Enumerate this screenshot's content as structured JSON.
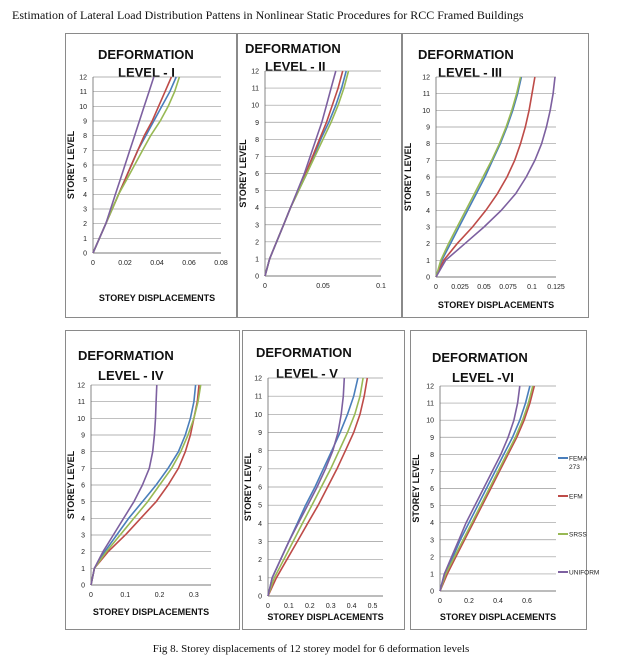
{
  "header": "Estimation of Lateral Load Distribution Pattens in Nonlinear Static Procedures for RCC Framed Buildings",
  "caption": "Fig 8. Storey displacements of 12 storey model for 6 deformation levels",
  "colors": {
    "FEMA 273": "#4a7ebb",
    "EFM": "#be4b48",
    "SRSS": "#98b954",
    "UNIFORM": "#7d60a0"
  },
  "chart_data": [
    {
      "type": "line",
      "title_line1": "DEFORMATION",
      "title_line2": "LEVEL - I",
      "xlabel": "STOREY DISPLACEMENTS",
      "ylabel": "STOREY LEVEL",
      "xlim": [
        0,
        0.08
      ],
      "xticks": [
        "0",
        "0.02",
        "0.04",
        "0.06",
        "0.08"
      ],
      "ylim": [
        0,
        12
      ],
      "yticks": [
        "0",
        "1",
        "2",
        "3",
        "4",
        "5",
        "6",
        "7",
        "8",
        "9",
        "10",
        "11",
        "12"
      ],
      "legend": null,
      "series": [
        {
          "name": "FEMA 273",
          "x": [
            0.004,
            0.008,
            0.012,
            0.016,
            0.02,
            0.024,
            0.028,
            0.033,
            0.038,
            0.043,
            0.048,
            0.052
          ],
          "y": [
            1,
            2,
            3,
            4,
            5,
            6,
            7,
            8,
            9,
            10,
            11,
            12
          ]
        },
        {
          "name": "EFM",
          "x": [
            0.004,
            0.008,
            0.012,
            0.016,
            0.02,
            0.024,
            0.028,
            0.032,
            0.037,
            0.041,
            0.045,
            0.049
          ],
          "y": [
            1,
            2,
            3,
            4,
            5,
            6,
            7,
            8,
            9,
            10,
            11,
            12
          ]
        },
        {
          "name": "SRSS",
          "x": [
            0.004,
            0.008,
            0.012,
            0.016,
            0.021,
            0.026,
            0.031,
            0.036,
            0.042,
            0.047,
            0.051,
            0.054
          ],
          "y": [
            1,
            2,
            3,
            4,
            5,
            6,
            7,
            8,
            9,
            10,
            11,
            12
          ]
        },
        {
          "name": "UNIFORM",
          "x": [
            0.004,
            0.008,
            0.011,
            0.014,
            0.017,
            0.02,
            0.023,
            0.026,
            0.029,
            0.032,
            0.035,
            0.038
          ],
          "y": [
            1,
            2,
            3,
            4,
            5,
            6,
            7,
            8,
            9,
            10,
            11,
            12
          ]
        }
      ]
    },
    {
      "type": "line",
      "title_line1": "DEFORMATION",
      "title_line2": "LEVEL - II",
      "xlabel": "",
      "ylabel": "STOREY LEVEL",
      "xlim": [
        0,
        0.1
      ],
      "xticks": [
        "0",
        "0.05",
        "0.1"
      ],
      "ylim": [
        0,
        12
      ],
      "yticks": [
        "0",
        "1",
        "2",
        "3",
        "4",
        "5",
        "6",
        "7",
        "8",
        "9",
        "10",
        "11",
        "12"
      ],
      "legend": null,
      "series": [
        {
          "name": "FEMA 273",
          "x": [
            0.004,
            0.01,
            0.016,
            0.022,
            0.029,
            0.036,
            0.042,
            0.048,
            0.055,
            0.061,
            0.066,
            0.07
          ],
          "y": [
            1,
            2,
            3,
            4,
            5,
            6,
            7,
            8,
            9,
            10,
            11,
            12
          ]
        },
        {
          "name": "EFM",
          "x": [
            0.004,
            0.01,
            0.016,
            0.022,
            0.029,
            0.035,
            0.041,
            0.047,
            0.053,
            0.058,
            0.063,
            0.067
          ],
          "y": [
            1,
            2,
            3,
            4,
            5,
            6,
            7,
            8,
            9,
            10,
            11,
            12
          ]
        },
        {
          "name": "SRSS",
          "x": [
            0.004,
            0.01,
            0.016,
            0.022,
            0.029,
            0.036,
            0.043,
            0.05,
            0.057,
            0.063,
            0.068,
            0.072
          ],
          "y": [
            1,
            2,
            3,
            4,
            5,
            6,
            7,
            8,
            9,
            10,
            11,
            12
          ]
        },
        {
          "name": "UNIFORM",
          "x": [
            0.004,
            0.01,
            0.016,
            0.022,
            0.028,
            0.034,
            0.039,
            0.044,
            0.049,
            0.053,
            0.057,
            0.061
          ],
          "y": [
            1,
            2,
            3,
            4,
            5,
            6,
            7,
            8,
            9,
            10,
            11,
            12
          ]
        }
      ]
    },
    {
      "type": "line",
      "title_line1": "DEFORMATION",
      "title_line2": "LEVEL - III",
      "xlabel": "STOREY DISPLACEMENTS",
      "ylabel": "STOREY LEVEL",
      "xlim": [
        0,
        0.125
      ],
      "xticks": [
        "0",
        "0.025",
        "0.05",
        "0.075",
        "0.1",
        "0.125"
      ],
      "ylim": [
        0,
        12
      ],
      "yticks": [
        "0",
        "1",
        "2",
        "3",
        "4",
        "5",
        "6",
        "7",
        "8",
        "9",
        "10",
        "11",
        "12"
      ],
      "legend": null,
      "series": [
        {
          "name": "FEMA 273",
          "x": [
            0.006,
            0.015,
            0.024,
            0.033,
            0.042,
            0.051,
            0.059,
            0.067,
            0.074,
            0.08,
            0.085,
            0.089
          ],
          "y": [
            1,
            2,
            3,
            4,
            5,
            6,
            7,
            8,
            9,
            10,
            11,
            12
          ]
        },
        {
          "name": "EFM",
          "x": [
            0.008,
            0.022,
            0.038,
            0.052,
            0.064,
            0.074,
            0.082,
            0.088,
            0.093,
            0.097,
            0.1,
            0.103
          ],
          "y": [
            1,
            2,
            3,
            4,
            5,
            6,
            7,
            8,
            9,
            10,
            11,
            12
          ]
        },
        {
          "name": "SRSS",
          "x": [
            0.005,
            0.013,
            0.022,
            0.031,
            0.04,
            0.049,
            0.058,
            0.066,
            0.073,
            0.079,
            0.084,
            0.088
          ],
          "y": [
            1,
            2,
            3,
            4,
            5,
            6,
            7,
            8,
            9,
            10,
            11,
            12
          ]
        },
        {
          "name": "UNIFORM",
          "x": [
            0.01,
            0.03,
            0.05,
            0.068,
            0.083,
            0.094,
            0.103,
            0.11,
            0.115,
            0.119,
            0.122,
            0.124
          ],
          "y": [
            1,
            2,
            3,
            4,
            5,
            6,
            7,
            8,
            9,
            10,
            11,
            12
          ]
        }
      ]
    },
    {
      "type": "line",
      "title_line1": "DEFORMATION",
      "title_line2": "LEVEL - IV",
      "xlabel": "STOREY DISPLACEMENTS",
      "ylabel": "STOREY LEVEL",
      "xlim": [
        0,
        0.35
      ],
      "xticks": [
        "0",
        "0.1",
        "0.2",
        "0.3"
      ],
      "ylim": [
        0,
        12
      ],
      "yticks": [
        "0",
        "1",
        "2",
        "3",
        "4",
        "5",
        "6",
        "7",
        "8",
        "9",
        "10",
        "11",
        "12"
      ],
      "legend": null,
      "series": [
        {
          "name": "FEMA 273",
          "x": [
            0.01,
            0.04,
            0.075,
            0.11,
            0.15,
            0.19,
            0.225,
            0.255,
            0.275,
            0.29,
            0.3,
            0.305
          ],
          "y": [
            1,
            2,
            3,
            4,
            5,
            6,
            7,
            8,
            9,
            10,
            11,
            12
          ]
        },
        {
          "name": "EFM",
          "x": [
            0.01,
            0.05,
            0.1,
            0.145,
            0.19,
            0.225,
            0.255,
            0.275,
            0.29,
            0.3,
            0.31,
            0.315
          ],
          "y": [
            1,
            2,
            3,
            4,
            5,
            6,
            7,
            8,
            9,
            10,
            11,
            12
          ]
        },
        {
          "name": "SRSS",
          "x": [
            0.01,
            0.045,
            0.085,
            0.125,
            0.165,
            0.2,
            0.235,
            0.262,
            0.283,
            0.3,
            0.312,
            0.32
          ],
          "y": [
            1,
            2,
            3,
            4,
            5,
            6,
            7,
            8,
            9,
            10,
            11,
            12
          ]
        },
        {
          "name": "UNIFORM",
          "x": [
            0.01,
            0.035,
            0.065,
            0.095,
            0.125,
            0.15,
            0.17,
            0.18,
            0.185,
            0.188,
            0.19,
            0.192
          ],
          "y": [
            1,
            2,
            3,
            4,
            5,
            6,
            7,
            8,
            9,
            10,
            11,
            12
          ]
        }
      ]
    },
    {
      "type": "line",
      "title_line1": "DEFORMATION",
      "title_line2": "LEVEL - V",
      "xlabel": "STOREY DISPLACEMENTS",
      "ylabel": "STOREY LEVEL",
      "xlim": [
        0,
        0.55
      ],
      "xticks": [
        "0",
        "0.1",
        "0.2",
        "0.3",
        "0.4",
        "0.5"
      ],
      "ylim": [
        0,
        12
      ],
      "yticks": [
        "0",
        "1",
        "2",
        "3",
        "4",
        "5",
        "6",
        "7",
        "8",
        "9",
        "10",
        "11",
        "12"
      ],
      "legend": null,
      "series": [
        {
          "name": "FEMA 273",
          "x": [
            0.02,
            0.06,
            0.1,
            0.14,
            0.18,
            0.225,
            0.265,
            0.305,
            0.345,
            0.38,
            0.41,
            0.43
          ],
          "y": [
            1,
            2,
            3,
            4,
            5,
            6,
            7,
            8,
            9,
            10,
            11,
            12
          ]
        },
        {
          "name": "EFM",
          "x": [
            0.04,
            0.09,
            0.14,
            0.19,
            0.24,
            0.285,
            0.33,
            0.37,
            0.41,
            0.44,
            0.46,
            0.475
          ],
          "y": [
            1,
            2,
            3,
            4,
            5,
            6,
            7,
            8,
            9,
            10,
            11,
            12
          ]
        },
        {
          "name": "SRSS",
          "x": [
            0.03,
            0.075,
            0.12,
            0.165,
            0.21,
            0.255,
            0.3,
            0.34,
            0.38,
            0.415,
            0.44,
            0.455
          ],
          "y": [
            1,
            2,
            3,
            4,
            5,
            6,
            7,
            8,
            9,
            10,
            11,
            12
          ]
        },
        {
          "name": "UNIFORM",
          "x": [
            0.02,
            0.06,
            0.1,
            0.145,
            0.19,
            0.235,
            0.275,
            0.31,
            0.335,
            0.35,
            0.36,
            0.365
          ],
          "y": [
            1,
            2,
            3,
            4,
            5,
            6,
            7,
            8,
            9,
            10,
            11,
            12
          ]
        }
      ]
    },
    {
      "type": "line",
      "title_line1": "DEFORMATION",
      "title_line2": "LEVEL -VI",
      "xlabel": "STOREY DISPLACEMENTS",
      "ylabel": "STOREY LEVEL",
      "xlim": [
        0,
        0.8
      ],
      "xticks": [
        "0",
        "0.2",
        "0.4",
        "0.6"
      ],
      "ylim": [
        0,
        12
      ],
      "yticks": [
        "0",
        "1",
        "2",
        "3",
        "4",
        "5",
        "6",
        "7",
        "8",
        "9",
        "10",
        "11",
        "12"
      ],
      "legend": "right",
      "series": [
        {
          "name": "FEMA 273",
          "x": [
            0.03,
            0.09,
            0.14,
            0.2,
            0.26,
            0.32,
            0.38,
            0.44,
            0.5,
            0.55,
            0.59,
            0.62
          ],
          "y": [
            1,
            2,
            3,
            4,
            5,
            6,
            7,
            8,
            9,
            10,
            11,
            12
          ]
        },
        {
          "name": "EFM",
          "x": [
            0.05,
            0.11,
            0.17,
            0.23,
            0.29,
            0.35,
            0.41,
            0.47,
            0.53,
            0.58,
            0.62,
            0.65
          ],
          "y": [
            1,
            2,
            3,
            4,
            5,
            6,
            7,
            8,
            9,
            10,
            11,
            12
          ]
        },
        {
          "name": "SRSS",
          "x": [
            0.04,
            0.1,
            0.16,
            0.22,
            0.28,
            0.34,
            0.4,
            0.46,
            0.52,
            0.57,
            0.61,
            0.64
          ],
          "y": [
            1,
            2,
            3,
            4,
            5,
            6,
            7,
            8,
            9,
            10,
            11,
            12
          ]
        },
        {
          "name": "UNIFORM",
          "x": [
            0.03,
            0.08,
            0.13,
            0.18,
            0.24,
            0.3,
            0.36,
            0.42,
            0.47,
            0.51,
            0.535,
            0.55
          ],
          "y": [
            1,
            2,
            3,
            4,
            5,
            6,
            7,
            8,
            9,
            10,
            11,
            12
          ]
        }
      ]
    }
  ]
}
